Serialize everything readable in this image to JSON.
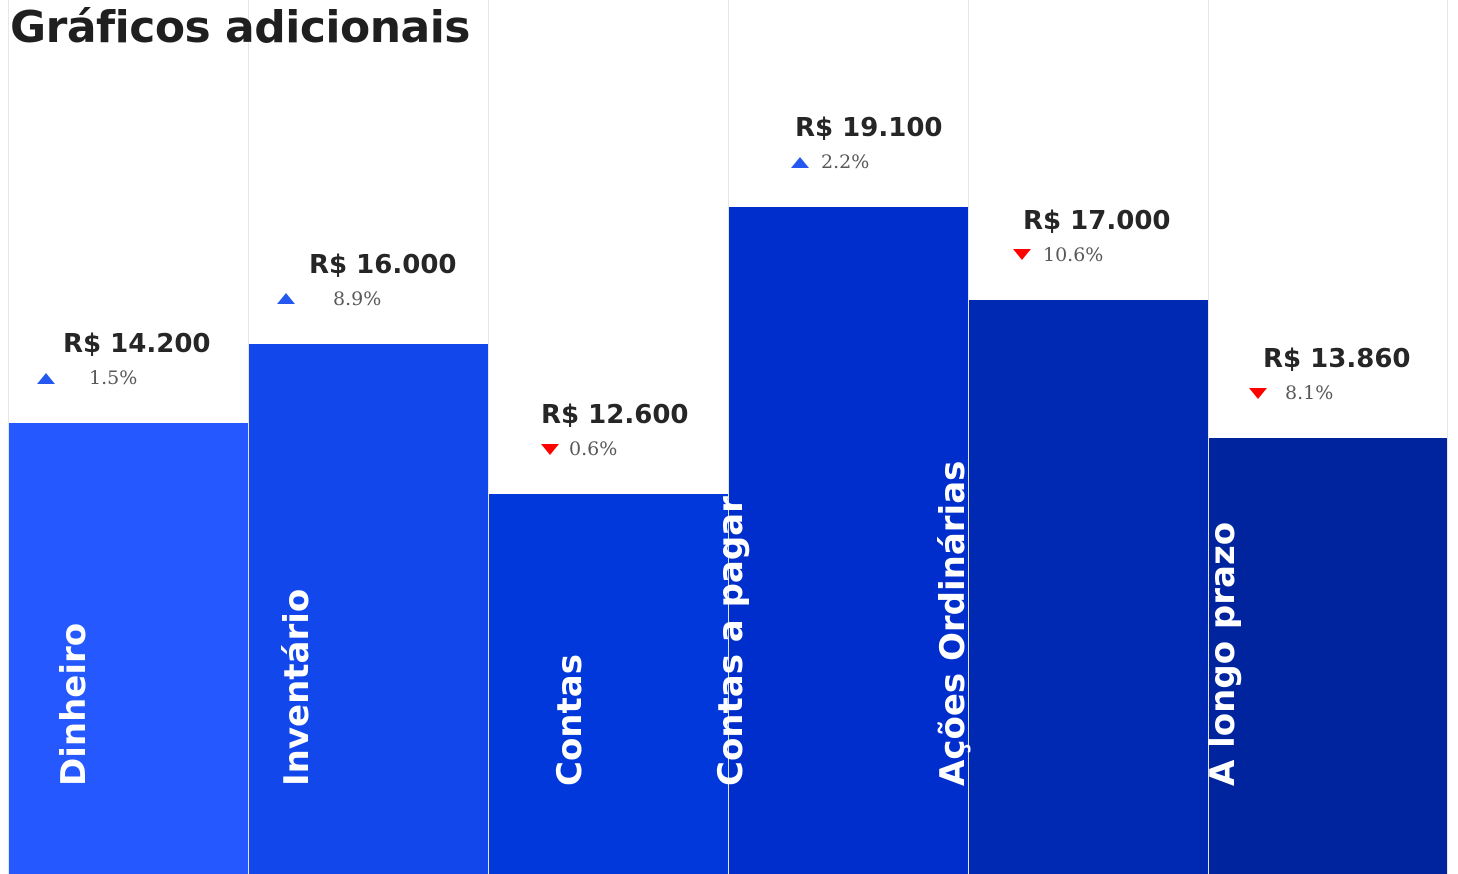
{
  "title": "Gráficos adicionais",
  "chart_data": {
    "type": "bar",
    "title": "Gráficos adicionais",
    "currency_prefix": "R$",
    "categories": [
      "Dinheiro",
      "Inventário",
      "Contas",
      "Contas a pagar",
      "Ações Ordinárias",
      "A longo prazo"
    ],
    "values": [
      14200,
      16000,
      12600,
      19100,
      17000,
      13860
    ],
    "value_labels": [
      "R$ 14.200",
      "R$ 16.000",
      "R$ 12.600",
      "R$ 19.100",
      "R$ 17.000",
      "R$ 13.860"
    ],
    "changes": [
      {
        "direction": "up",
        "label": "1.5%",
        "value": 1.5
      },
      {
        "direction": "up",
        "label": "8.9%",
        "value": 8.9
      },
      {
        "direction": "down",
        "label": "0.6%",
        "value": 0.6
      },
      {
        "direction": "up",
        "label": "2.2%",
        "value": 2.2
      },
      {
        "direction": "down",
        "label": "10.6%",
        "value": 10.6
      },
      {
        "direction": "down",
        "label": "8.1%",
        "value": 8.1
      }
    ],
    "bar_colors": [
      "#2559FF",
      "#1247EB",
      "#0038DB",
      "#002ECC",
      "#0029B3",
      "#00239E"
    ],
    "up_color": "#2458F0",
    "down_color": "#FF0000",
    "label_color": "#FFFFFF",
    "grid": false,
    "legend": "none"
  }
}
